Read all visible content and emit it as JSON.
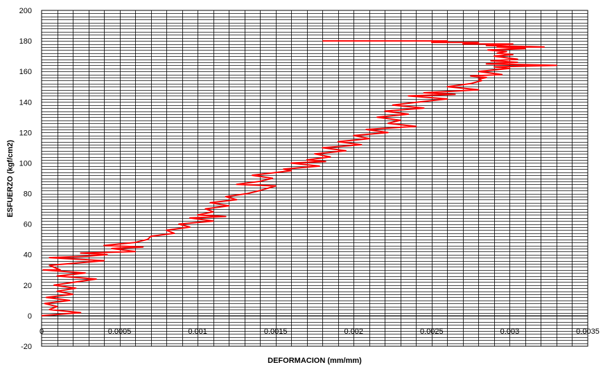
{
  "chart_data": {
    "type": "line",
    "title": "",
    "xlabel": "DEFORMACION (mm/mm)",
    "ylabel": "ESFUERZO (kgf/cm2)",
    "xlim": [
      0,
      0.0035
    ],
    "ylim": [
      -20,
      200
    ],
    "x_ticks": [
      0,
      0.0005,
      0.001,
      0.0015,
      0.002,
      0.0025,
      0.003,
      0.0035
    ],
    "x_tick_labels": [
      "0",
      "0.0005",
      "0.001",
      "0.0015",
      "0.002",
      "0.0025",
      "0.003",
      "0.0035"
    ],
    "y_ticks": [
      -20,
      0,
      20,
      40,
      60,
      80,
      100,
      120,
      140,
      160,
      180,
      200
    ],
    "y_tick_labels": [
      "-20",
      "0",
      "20",
      "40",
      "60",
      "80",
      "100",
      "120",
      "140",
      "160",
      "180",
      "200"
    ],
    "x_grid_step": 0.0001,
    "y_grid_step": 2,
    "grid": true,
    "legend": "none",
    "series": [
      {
        "color": "#ff0000",
        "x": [
          0,
          0.00025,
          5e-05,
          0.0001,
          2e-05,
          0.00018,
          3e-05,
          0.0002,
          0.0001,
          0.00022,
          8e-05,
          0.00035,
          0.0001,
          0.00028,
          1e-05,
          0.00012,
          5e-05,
          0.0004,
          5e-05,
          0.0003,
          0.00042,
          0.00025,
          0.0006,
          0.00045,
          0.00065,
          0.0004,
          0.0006,
          0.00068,
          0.0007,
          0.00085,
          0.0008,
          0.00095,
          0.00088,
          0.0011,
          0.00095,
          0.00118,
          0.001,
          0.0011,
          0.00105,
          0.0012,
          0.00108,
          0.00125,
          0.00118,
          0.00132,
          0.0014,
          0.0015,
          0.00125,
          0.0014,
          0.00148,
          0.00135,
          0.0016,
          0.00155,
          0.00178,
          0.0016,
          0.00182,
          0.0017,
          0.00185,
          0.00175,
          0.00195,
          0.0018,
          0.00205,
          0.0019,
          0.0021,
          0.002,
          0.00222,
          0.00208,
          0.0024,
          0.00222,
          0.0023,
          0.00215,
          0.00235,
          0.0022,
          0.00245,
          0.00225,
          0.00242,
          0.0026,
          0.00235,
          0.00265,
          0.00245,
          0.0028,
          0.0026,
          0.00275,
          0.00282,
          0.0028,
          0.00285,
          0.00275,
          0.00295,
          0.0028,
          0.003,
          0.0029,
          0.0033,
          0.00285,
          0.00305,
          0.00288,
          0.00305,
          0.0029,
          0.00302,
          0.00292,
          0.00298,
          0.00286,
          0.0031,
          0.00292,
          0.00322,
          0.00285,
          0.00302,
          0.0028,
          0.0027,
          0.0028,
          0.00265,
          0.0025,
          0.0026,
          0.0024,
          0.0023,
          0.0021,
          0.0018
        ],
        "y": [
          0,
          2,
          4,
          6,
          8,
          10,
          12,
          14,
          16,
          18,
          20,
          24,
          26,
          28,
          30,
          30,
          33,
          36,
          38,
          39,
          40,
          41,
          42,
          44,
          45,
          46,
          48,
          50,
          52,
          54,
          56,
          58,
          60,
          62,
          64,
          65,
          66,
          68,
          70,
          72,
          74,
          76,
          78,
          80,
          82,
          85,
          86,
          88,
          90,
          92,
          95,
          96,
          98,
          100,
          101,
          102,
          104,
          106,
          108,
          110,
          112,
          114,
          116,
          118,
          120,
          122,
          124,
          126,
          128,
          130,
          132,
          134,
          136,
          138,
          140,
          142,
          144,
          145,
          146,
          148,
          150,
          152,
          154,
          155,
          156,
          157,
          158,
          160,
          162,
          163,
          164,
          165,
          166,
          167,
          168,
          170,
          171,
          172,
          173,
          174,
          175,
          176,
          176,
          177,
          178,
          178,
          178,
          179,
          179,
          179,
          180,
          180,
          180,
          180,
          180
        ]
      }
    ]
  }
}
